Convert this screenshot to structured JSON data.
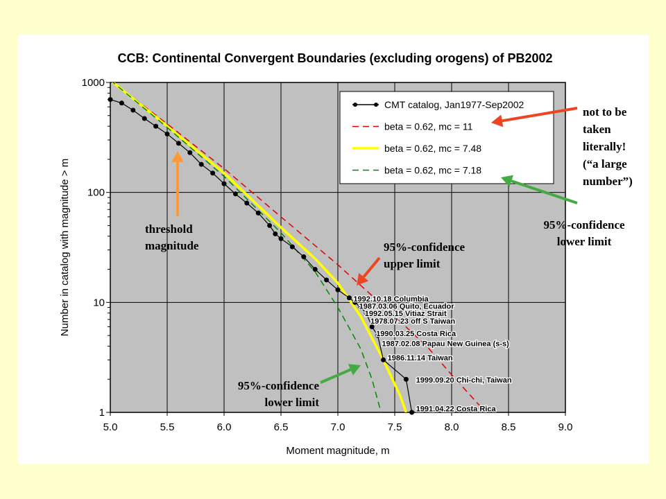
{
  "chart_data": {
    "type": "line",
    "title": "CCB: Continental Convergent Boundaries (excluding orogens) of PB2002",
    "xlabel": "Moment magnitude, m",
    "ylabel": "Number in catalog with magnitude > m",
    "xlim": [
      5.0,
      9.0
    ],
    "ylim": [
      1,
      1000
    ],
    "yscale": "log",
    "grid": true,
    "legend_position": "top-right",
    "x_ticks": [
      "5.0",
      "5.5",
      "6.0",
      "6.5",
      "7.0",
      "7.5",
      "8.0",
      "8.5",
      "9.0"
    ],
    "y_ticks": [
      {
        "value": 1000,
        "label": "1000"
      },
      {
        "value": 100,
        "label": "100"
      },
      {
        "value": 10,
        "label": "10"
      },
      {
        "value": 1,
        "label": "1"
      }
    ],
    "series": [
      {
        "name": "CMT catalog, Jan1977-Sep2002",
        "style": "markers",
        "color": "#000000",
        "x": [
          5.0,
          5.1,
          5.2,
          5.3,
          5.4,
          5.5,
          5.6,
          5.7,
          5.8,
          5.9,
          6.0,
          6.1,
          6.2,
          6.3,
          6.4,
          6.45,
          6.5,
          6.6,
          6.7,
          6.8,
          6.9,
          7.0,
          7.1,
          7.15,
          7.2,
          7.25,
          7.3,
          7.35,
          7.4,
          7.6,
          7.65
        ],
        "y": [
          700,
          650,
          560,
          470,
          400,
          340,
          280,
          230,
          180,
          150,
          120,
          97,
          80,
          65,
          50,
          42,
          38,
          32,
          26,
          20,
          16,
          13,
          11,
          10,
          9,
          8,
          6,
          5,
          3,
          2,
          1
        ]
      },
      {
        "name": "beta = 0.62, mc = 11",
        "style": "dashed",
        "color": "#dd0000",
        "x": [
          5.0,
          5.5,
          6.0,
          6.5,
          7.0,
          7.5,
          7.8,
          8.0,
          8.2,
          8.3
        ],
        "y": [
          1050,
          420,
          165,
          60,
          22,
          7.5,
          3.8,
          2.2,
          1.3,
          1.0
        ]
      },
      {
        "name": "beta = 0.62, mc = 7.48",
        "style": "solid",
        "color": "#ffff00",
        "x": [
          5.0,
          5.5,
          6.0,
          6.5,
          6.8,
          7.0,
          7.2,
          7.4,
          7.55,
          7.6
        ],
        "y": [
          1050,
          400,
          150,
          48,
          25,
          15,
          7.5,
          3.0,
          1.4,
          1.0
        ]
      },
      {
        "name": "beta = 0.62, mc = 7.18",
        "style": "dashed",
        "color": "#008800",
        "x": [
          5.0,
          5.5,
          6.0,
          6.5,
          6.8,
          7.0,
          7.2,
          7.3,
          7.38
        ],
        "y": [
          1050,
          390,
          140,
          43,
          19,
          9,
          3.8,
          2.0,
          1.0
        ]
      }
    ],
    "event_labels": [
      {
        "text": "1992.10.18 Columbia",
        "x": 7.1,
        "y": 11
      },
      {
        "text": "1987.03.06 Quito, Ecuador",
        "x": 7.15,
        "y": 9.4
      },
      {
        "text": "1992.05.15 Vitiaz Strait",
        "x": 7.2,
        "y": 8.1
      },
      {
        "text": "1978.07.23 off S Taiwan",
        "x": 7.25,
        "y": 6.9
      },
      {
        "text": "1990.03.25 Costa Rica",
        "x": 7.3,
        "y": 5.3
      },
      {
        "text": "1987.02.08 Papau New Guinea (s-s)",
        "x": 7.35,
        "y": 4.3
      },
      {
        "text": "1986.11.14 Taiwan",
        "x": 7.4,
        "y": 3.2
      },
      {
        "text": "1999.09.20 Chi-chi, Taiwan",
        "x": 7.65,
        "y": 2.0
      },
      {
        "text": "1991.04.22 Costa Rica",
        "x": 7.65,
        "y": 1.1
      }
    ]
  },
  "annotations": {
    "threshold": [
      "threshold",
      "magnitude"
    ],
    "upper_limit": [
      "95%-confidence",
      "upper limit"
    ],
    "lower_limit_inner": [
      "95%-confidence",
      "lower limit"
    ],
    "lower_limit_outer": [
      "95%-confidence",
      "lower limit"
    ],
    "not_literal": [
      "not to be",
      "taken",
      "literally!",
      "(“a large",
      "number”)"
    ]
  },
  "colors": {
    "background": "#ffffcc",
    "plot_area": "#c0c0c0",
    "arrow_orange": "#ff9933",
    "arrow_red": "#ee4422",
    "arrow_green": "#44aa44"
  }
}
